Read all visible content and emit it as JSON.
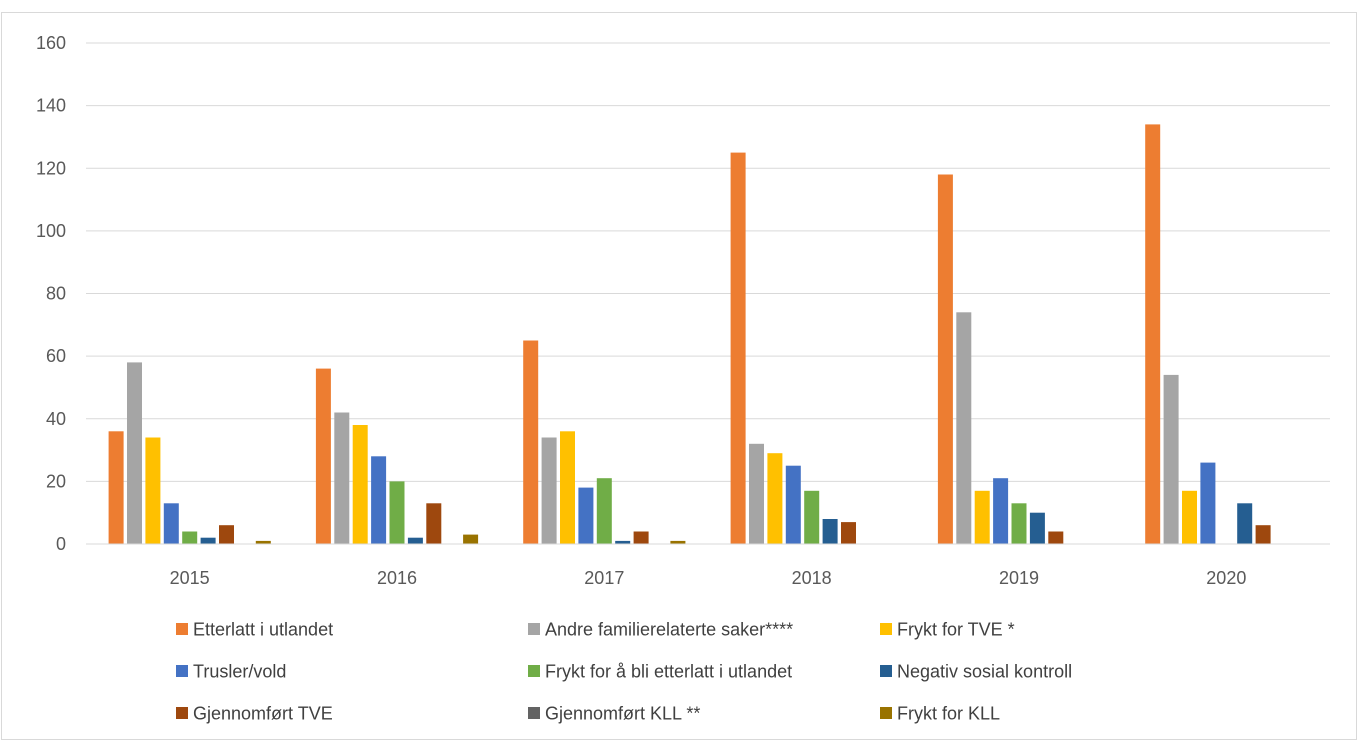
{
  "chart_data": {
    "type": "bar",
    "categories": [
      "2015",
      "2016",
      "2017",
      "2018",
      "2019",
      "2020"
    ],
    "ylim": [
      0,
      160
    ],
    "yticks": [
      0,
      20,
      40,
      60,
      80,
      100,
      120,
      140,
      160
    ],
    "grid": true,
    "legend_position": "bottom",
    "series": [
      {
        "name": "Etterlatt i utlandet",
        "color": "#ed7d31",
        "values": [
          36,
          56,
          65,
          125,
          118,
          134
        ]
      },
      {
        "name": "Andre familierelaterte saker****",
        "color": "#a5a5a5",
        "values": [
          58,
          42,
          34,
          32,
          74,
          54
        ]
      },
      {
        "name": "Frykt for TVE *",
        "color": "#ffc000",
        "values": [
          34,
          38,
          36,
          29,
          17,
          17
        ]
      },
      {
        "name": "Trusler/vold",
        "color": "#4472c4",
        "values": [
          13,
          28,
          18,
          25,
          21,
          26
        ]
      },
      {
        "name": "Frykt for å bli etterlatt i utlandet",
        "color": "#70ad47",
        "values": [
          4,
          20,
          21,
          17,
          13,
          0
        ]
      },
      {
        "name": "Negativ sosial kontroll",
        "color": "#255e91",
        "values": [
          2,
          2,
          1,
          8,
          10,
          13
        ]
      },
      {
        "name": "Gjennomført TVE",
        "color": "#9e480e",
        "values": [
          6,
          13,
          4,
          7,
          4,
          6
        ]
      },
      {
        "name": "Gjennomført KLL **",
        "color": "#636363",
        "values": [
          0,
          0,
          0,
          0,
          0,
          0
        ]
      },
      {
        "name": "Frykt for KLL",
        "color": "#997300",
        "values": [
          1,
          3,
          1,
          0,
          0,
          0
        ]
      }
    ]
  }
}
